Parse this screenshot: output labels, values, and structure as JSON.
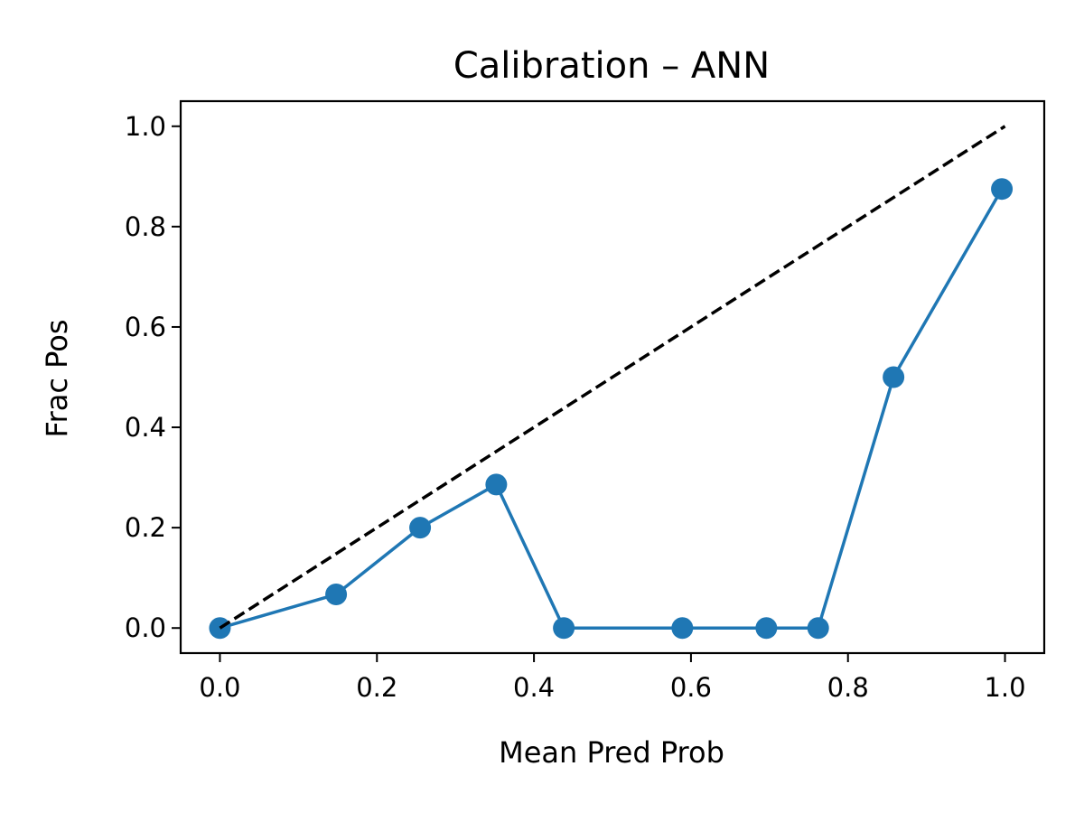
{
  "chart_data": {
    "type": "line",
    "title": "Calibration – ANN",
    "xlabel": "Mean Pred Prob",
    "ylabel": "Frac Pos",
    "xlim": [
      -0.05,
      1.05
    ],
    "ylim": [
      -0.05,
      1.05
    ],
    "xticks": [
      0.0,
      0.2,
      0.4,
      0.6,
      0.8,
      1.0
    ],
    "yticks": [
      0.0,
      0.2,
      0.4,
      0.6,
      0.8,
      1.0
    ],
    "xtick_labels": [
      "0.0",
      "0.2",
      "0.4",
      "0.6",
      "0.8",
      "1.0"
    ],
    "ytick_labels": [
      "0.0",
      "0.2",
      "0.4",
      "0.6",
      "0.8",
      "1.0"
    ],
    "grid": false,
    "series": [
      {
        "style": "solid-marker",
        "color": "#1f77b4",
        "x": [
          0.0,
          0.148,
          0.255,
          0.352,
          0.438,
          0.589,
          0.696,
          0.762,
          0.858,
          0.996
        ],
        "y": [
          0.0,
          0.067,
          0.2,
          0.286,
          0.0,
          0.0,
          0.0,
          0.0,
          0.5,
          0.875
        ]
      },
      {
        "style": "dashed",
        "color": "#000000",
        "x": [
          0.0,
          1.0
        ],
        "y": [
          0.0,
          1.0
        ]
      }
    ]
  }
}
